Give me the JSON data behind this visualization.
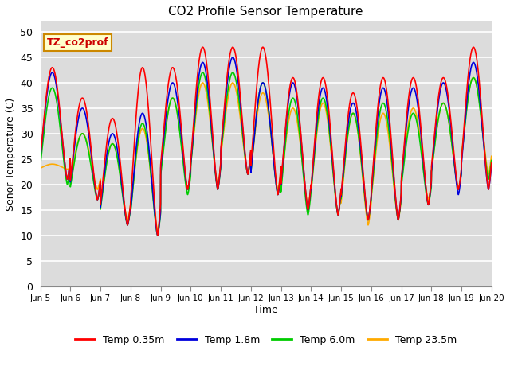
{
  "title": "CO2 Profile Sensor Temperature",
  "ylabel": "Senor Temperature (C)",
  "xlabel": "Time",
  "xlim_start": 0,
  "xlim_end": 15,
  "ylim": [
    0,
    52
  ],
  "yticks": [
    0,
    5,
    10,
    15,
    20,
    25,
    30,
    35,
    40,
    45,
    50
  ],
  "bg_color": "#dcdcdc",
  "grid_color": "#ffffff",
  "annotation_text": "TZ_co2prof",
  "annotation_bg": "#ffffcc",
  "annotation_border": "#cc8800",
  "annotation_text_color": "#cc0000",
  "legend_entries": [
    "Temp 0.35m",
    "Temp 1.8m",
    "Temp 6.0m",
    "Temp 23.5m"
  ],
  "legend_colors": [
    "#ff0000",
    "#0000dd",
    "#00cc00",
    "#ffaa00"
  ],
  "line_colors": [
    "#ff0000",
    "#0000dd",
    "#00cc00",
    "#ffaa00"
  ],
  "xtick_labels": [
    "Jun 5",
    "Jun 6",
    "Jun 7",
    "Jun 8",
    "Jun 9",
    "Jun 10",
    "Jun 11",
    "Jun 12",
    "Jun 13",
    "Jun 14",
    "Jun 15",
    "Jun 16",
    "Jun 17",
    "Jun 18",
    "Jun 19",
    "Jun 20"
  ],
  "xtick_positions": [
    0,
    1,
    2,
    3,
    4,
    5,
    6,
    7,
    8,
    9,
    10,
    11,
    12,
    13,
    14,
    15
  ],
  "figsize": [
    6.4,
    4.8
  ],
  "dpi": 100
}
